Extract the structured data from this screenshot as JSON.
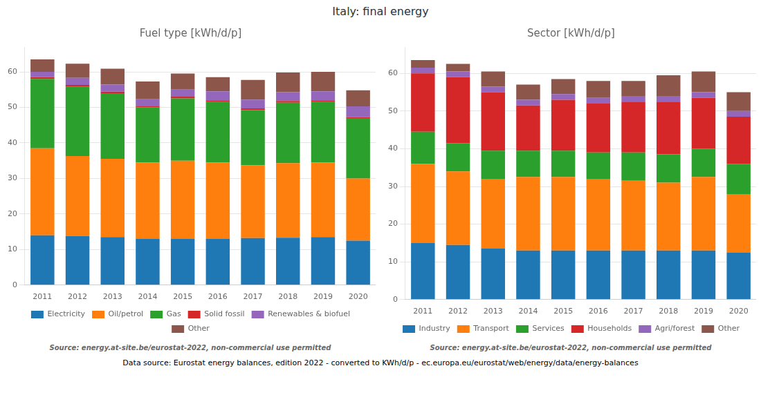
{
  "title": "Italy: final energy",
  "annotations": [
    "Data source: Eurostat energy balances, edition 2022 - converted to KWh/d/p - ec.europa.eu/eurostat/web/energy/data/energy-balances"
  ],
  "chart_data": [
    {
      "type": "bar",
      "stacked": true,
      "title": "Fuel type [kWh/d/p]",
      "categories": [
        "2011",
        "2012",
        "2013",
        "2014",
        "2015",
        "2016",
        "2017",
        "2018",
        "2019",
        "2020"
      ],
      "series": [
        {
          "name": "Electricity",
          "color": "#1f77b4",
          "values": [
            14.0,
            13.8,
            13.5,
            13.0,
            13.0,
            13.0,
            13.2,
            13.3,
            13.5,
            12.5
          ]
        },
        {
          "name": "Oil/petrol",
          "color": "#ff7f0e",
          "values": [
            24.5,
            22.5,
            22.0,
            21.5,
            22.0,
            21.5,
            20.5,
            21.0,
            21.0,
            17.5
          ]
        },
        {
          "name": "Gas",
          "color": "#2ca02c",
          "values": [
            19.5,
            19.5,
            18.5,
            15.5,
            17.5,
            17.0,
            15.5,
            17.0,
            17.0,
            17.0
          ]
        },
        {
          "name": "Solid fossil",
          "color": "#d62728",
          "values": [
            0.5,
            0.5,
            0.4,
            0.3,
            0.5,
            0.5,
            0.5,
            0.5,
            0.5,
            0.3
          ]
        },
        {
          "name": "Renewables & biofuel",
          "color": "#9467bd",
          "values": [
            1.5,
            2.0,
            2.0,
            2.0,
            2.0,
            2.5,
            2.5,
            2.5,
            2.5,
            3.0
          ]
        },
        {
          "name": "Other",
          "color": "#8c564b",
          "values": [
            3.5,
            4.0,
            4.5,
            5.0,
            4.5,
            4.0,
            5.5,
            5.5,
            5.5,
            4.5
          ]
        }
      ],
      "ylim": [
        0,
        67
      ],
      "yticks": [
        0,
        10,
        20,
        30,
        40,
        50,
        60
      ],
      "grid": true,
      "legend": "bottom",
      "annotations": [
        "Source: energy.at-site.be/eurostat-2022, non-commercial use permitted"
      ]
    },
    {
      "type": "bar",
      "stacked": true,
      "title": "Sector [kWh/d/p]",
      "categories": [
        "2011",
        "2012",
        "2013",
        "2014",
        "2015",
        "2016",
        "2017",
        "2018",
        "2019",
        "2020"
      ],
      "series": [
        {
          "name": "Industry",
          "color": "#1f77b4",
          "values": [
            15.0,
            14.5,
            13.5,
            13.0,
            13.0,
            13.0,
            13.0,
            13.0,
            13.0,
            12.5
          ]
        },
        {
          "name": "Transport",
          "color": "#ff7f0e",
          "values": [
            21.0,
            19.5,
            18.5,
            19.5,
            19.5,
            19.0,
            18.5,
            18.0,
            19.5,
            15.5
          ]
        },
        {
          "name": "Services",
          "color": "#2ca02c",
          "values": [
            8.5,
            7.5,
            7.5,
            7.0,
            7.0,
            7.0,
            7.5,
            7.5,
            7.5,
            8.0
          ]
        },
        {
          "name": "Households",
          "color": "#d62728",
          "values": [
            15.5,
            17.5,
            15.5,
            12.0,
            13.5,
            13.0,
            13.5,
            14.0,
            13.5,
            12.5
          ]
        },
        {
          "name": "Agri/forest",
          "color": "#9467bd",
          "values": [
            1.5,
            1.5,
            1.5,
            1.5,
            1.5,
            1.5,
            1.5,
            1.5,
            1.5,
            1.5
          ]
        },
        {
          "name": "Other",
          "color": "#8c564b",
          "values": [
            2.0,
            2.0,
            4.0,
            4.0,
            4.0,
            4.5,
            4.0,
            5.5,
            5.5,
            5.0
          ]
        }
      ],
      "ylim": [
        0,
        67
      ],
      "yticks": [
        0,
        10,
        20,
        30,
        40,
        50,
        60
      ],
      "grid": true,
      "legend": "bottom",
      "annotations": [
        "Source: energy.at-site.be/eurostat-2022, non-commercial use permitted"
      ]
    }
  ]
}
